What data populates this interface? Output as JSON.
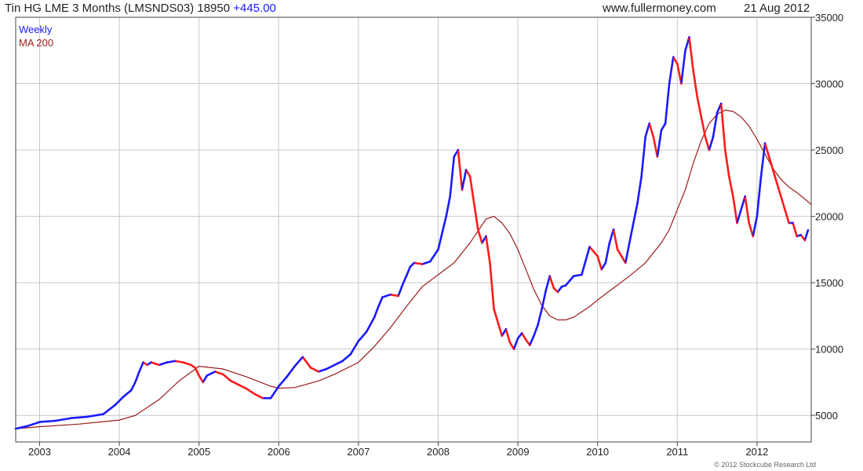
{
  "header": {
    "title": "Tin HG LME 3 Months (LMSNDS03) 18950",
    "change": "+445.00",
    "site": "www.fullermoney.com",
    "date": "21 Aug 2012"
  },
  "footer": {
    "copyright": "© 2012 Stockcube Research Ltd"
  },
  "colors": {
    "up": "#1a1aff",
    "down": "#ff1a1a",
    "ma": "#9b1c1c",
    "grid": "#c8c8c8"
  },
  "chart_data": {
    "type": "line",
    "xlabel": "",
    "ylabel": "",
    "grid": true,
    "legend_position": "top-left",
    "x_ticks": [
      "2003",
      "2004",
      "2005",
      "2006",
      "2007",
      "2008",
      "2009",
      "2010",
      "2011",
      "2012"
    ],
    "y_ticks": [
      "5000",
      "10000",
      "15000",
      "20000",
      "25000",
      "30000",
      "35000"
    ],
    "xlim": [
      2002.7,
      2012.68
    ],
    "ylim": [
      3000,
      35000
    ],
    "series": [
      {
        "name": "Weekly",
        "x": [
          2002.7,
          2002.85,
          2003.0,
          2003.2,
          2003.4,
          2003.6,
          2003.8,
          2003.95,
          2004.05,
          2004.15,
          2004.2,
          2004.25,
          2004.3,
          2004.35,
          2004.4,
          2004.5,
          2004.6,
          2004.7,
          2004.8,
          2004.9,
          2004.95,
          2005.0,
          2005.05,
          2005.1,
          2005.2,
          2005.3,
          2005.4,
          2005.5,
          2005.6,
          2005.7,
          2005.8,
          2005.9,
          2006.0,
          2006.1,
          2006.2,
          2006.3,
          2006.35,
          2006.4,
          2006.5,
          2006.6,
          2006.7,
          2006.8,
          2006.9,
          2007.0,
          2007.1,
          2007.2,
          2007.25,
          2007.3,
          2007.4,
          2007.5,
          2007.55,
          2007.6,
          2007.65,
          2007.7,
          2007.8,
          2007.9,
          2008.0,
          2008.1,
          2008.15,
          2008.2,
          2008.25,
          2008.3,
          2008.35,
          2008.4,
          2008.45,
          2008.5,
          2008.55,
          2008.6,
          2008.65,
          2008.7,
          2008.75,
          2008.8,
          2008.85,
          2008.9,
          2008.95,
          2009.0,
          2009.05,
          2009.1,
          2009.15,
          2009.2,
          2009.25,
          2009.3,
          2009.35,
          2009.4,
          2009.45,
          2009.5,
          2009.55,
          2009.6,
          2009.7,
          2009.8,
          2009.9,
          2010.0,
          2010.05,
          2010.1,
          2010.15,
          2010.2,
          2010.25,
          2010.3,
          2010.35,
          2010.4,
          2010.5,
          2010.55,
          2010.6,
          2010.65,
          2010.7,
          2010.75,
          2010.8,
          2010.85,
          2010.9,
          2010.95,
          2011.0,
          2011.05,
          2011.1,
          2011.15,
          2011.2,
          2011.25,
          2011.3,
          2011.35,
          2011.4,
          2011.45,
          2011.5,
          2011.55,
          2011.6,
          2011.65,
          2011.7,
          2011.75,
          2011.8,
          2011.85,
          2011.9,
          2011.95,
          2012.0,
          2012.05,
          2012.1,
          2012.15,
          2012.2,
          2012.25,
          2012.3,
          2012.35,
          2012.4,
          2012.45,
          2012.5,
          2012.55,
          2012.6,
          2012.64
        ],
        "values": [
          4000,
          4200,
          4500,
          4600,
          4800,
          4900,
          5100,
          5800,
          6400,
          6900,
          7500,
          8300,
          9000,
          8800,
          9000,
          8800,
          9000,
          9100,
          9000,
          8800,
          8600,
          8000,
          7500,
          8000,
          8300,
          8100,
          7600,
          7300,
          7000,
          6600,
          6300,
          6300,
          7200,
          7900,
          8700,
          9400,
          9000,
          8600,
          8300,
          8500,
          8800,
          9100,
          9600,
          10600,
          11300,
          12400,
          13200,
          13900,
          14100,
          14000,
          14800,
          15500,
          16200,
          16500,
          16400,
          16600,
          17500,
          20000,
          21500,
          24500,
          25000,
          22000,
          23500,
          23000,
          21000,
          19000,
          18000,
          18500,
          16500,
          13000,
          12000,
          11000,
          11500,
          10500,
          10000,
          10800,
          11200,
          10700,
          10300,
          11000,
          11800,
          13000,
          14400,
          15500,
          14600,
          14300,
          14700,
          14800,
          15500,
          15600,
          17700,
          17000,
          16000,
          16500,
          18000,
          19000,
          17500,
          17000,
          16500,
          18000,
          21000,
          23000,
          26000,
          27000,
          26000,
          24500,
          26500,
          27000,
          30000,
          32000,
          31500,
          30000,
          32500,
          33500,
          31000,
          29000,
          27500,
          26000,
          25000,
          26000,
          27800,
          28500,
          25000,
          23000,
          21500,
          19500,
          20500,
          21500,
          19500,
          18500,
          20000,
          23000,
          25500,
          24500,
          23500,
          22500,
          21500,
          20500,
          19500,
          19500,
          18500,
          18600,
          18200,
          18950
        ]
      },
      {
        "name": "MA 200",
        "x": [
          2002.7,
          2003.0,
          2003.5,
          2004.0,
          2004.2,
          2004.5,
          2004.75,
          2005.0,
          2005.3,
          2005.6,
          2005.9,
          2006.0,
          2006.2,
          2006.5,
          2006.7,
          2007.0,
          2007.2,
          2007.4,
          2007.6,
          2007.8,
          2008.0,
          2008.2,
          2008.4,
          2008.6,
          2008.7,
          2008.8,
          2008.9,
          2009.0,
          2009.1,
          2009.2,
          2009.3,
          2009.4,
          2009.5,
          2009.6,
          2009.7,
          2009.8,
          2009.9,
          2010.0,
          2010.2,
          2010.4,
          2010.6,
          2010.8,
          2010.9,
          2011.0,
          2011.1,
          2011.2,
          2011.3,
          2011.4,
          2011.5,
          2011.6,
          2011.7,
          2011.8,
          2011.9,
          2012.0,
          2012.1,
          2012.2,
          2012.3,
          2012.4,
          2012.5,
          2012.6,
          2012.68
        ],
        "values": [
          4000,
          4150,
          4350,
          4650,
          5000,
          6200,
          7600,
          8700,
          8500,
          7900,
          7200,
          7050,
          7100,
          7600,
          8100,
          9000,
          10200,
          11600,
          13200,
          14700,
          15600,
          16500,
          18000,
          19800,
          20000,
          19500,
          18700,
          17500,
          16000,
          14500,
          13300,
          12500,
          12200,
          12200,
          12400,
          12800,
          13200,
          13700,
          14600,
          15500,
          16500,
          18000,
          19000,
          20500,
          22000,
          24000,
          25700,
          27000,
          27700,
          28000,
          27900,
          27500,
          26800,
          25800,
          24700,
          23600,
          22800,
          22200,
          21800,
          21300,
          20900
        ]
      }
    ]
  }
}
